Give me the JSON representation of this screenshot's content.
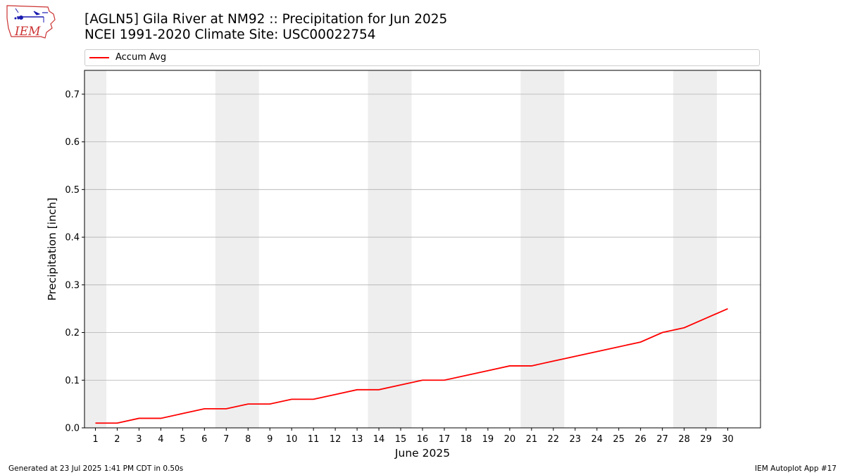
{
  "header": {
    "title_line1": "[AGLN5] Gila River at NM92 :: Precipitation for Jun 2025",
    "title_line2": "NCEI 1991-2020 Climate Site: USC00022754"
  },
  "logo": {
    "text": "IEM",
    "icon": "iowa-state-outline-logo",
    "color": "#cc3333"
  },
  "footer": {
    "left": "Generated at 23 Jul 2025 1:41 PM CDT in 0.50s",
    "right": "IEM Autoplot App #17"
  },
  "chart_data": {
    "type": "line",
    "xlabel": "June 2025",
    "ylabel": "Precipitation [inch]",
    "x": [
      1,
      2,
      3,
      4,
      5,
      6,
      7,
      8,
      9,
      10,
      11,
      12,
      13,
      14,
      15,
      16,
      17,
      18,
      19,
      20,
      21,
      22,
      23,
      24,
      25,
      26,
      27,
      28,
      29,
      30
    ],
    "xlim": [
      0.5,
      31.5
    ],
    "ylim": [
      0,
      0.75
    ],
    "yticks": [
      0.0,
      0.1,
      0.2,
      0.3,
      0.4,
      0.5,
      0.6,
      0.7
    ],
    "ytick_labels": [
      "0.0",
      "0.1",
      "0.2",
      "0.3",
      "0.4",
      "0.5",
      "0.6",
      "0.7"
    ],
    "grid": "horizontal",
    "legend": "top",
    "weekend_shading": [
      [
        0.5,
        1.5
      ],
      [
        6.5,
        8.5
      ],
      [
        13.5,
        15.5
      ],
      [
        20.5,
        22.5
      ],
      [
        27.5,
        29.5
      ]
    ],
    "shading_color": "#eeeeee",
    "series": [
      {
        "name": "Accum Avg",
        "color": "#ff0000",
        "values": [
          0.01,
          0.01,
          0.02,
          0.02,
          0.03,
          0.04,
          0.04,
          0.05,
          0.05,
          0.06,
          0.06,
          0.07,
          0.08,
          0.08,
          0.09,
          0.1,
          0.1,
          0.11,
          0.12,
          0.13,
          0.13,
          0.14,
          0.15,
          0.16,
          0.17,
          0.18,
          0.2,
          0.21,
          0.23,
          0.25
        ]
      }
    ]
  }
}
